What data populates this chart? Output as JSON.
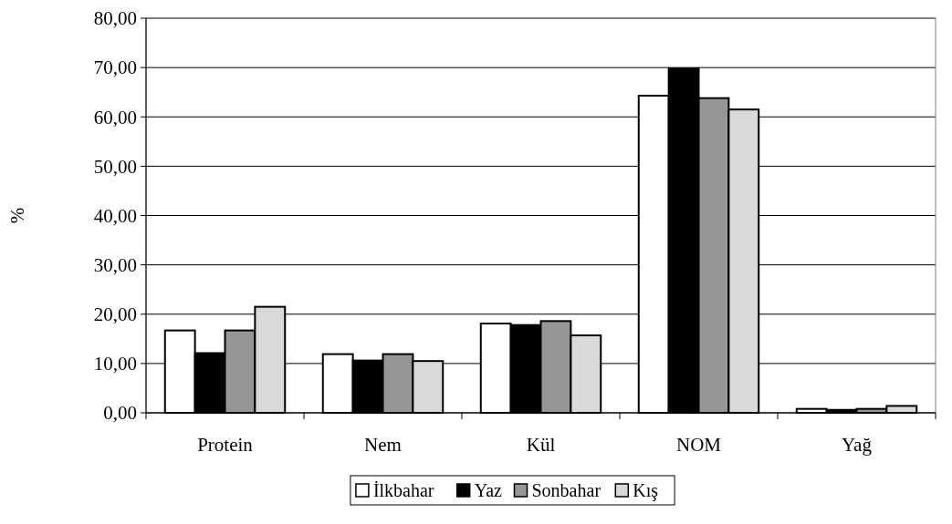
{
  "chart_data": {
    "type": "bar",
    "ylabel": "%",
    "categories": [
      "Protein",
      "Nem",
      "Kül",
      "NOM",
      "Yağ"
    ],
    "series": [
      {
        "name": "İlkbahar",
        "color": "#ffffff",
        "values": [
          16.7,
          11.9,
          18.1,
          64.3,
          0.8
        ]
      },
      {
        "name": "Yaz",
        "color": "#000000",
        "values": [
          12.1,
          10.6,
          17.8,
          69.8,
          0.6
        ]
      },
      {
        "name": "Sonbahar",
        "color": "#969696",
        "values": [
          16.7,
          11.9,
          18.6,
          63.8,
          0.8
        ]
      },
      {
        "name": "Kış",
        "color": "#d9d9d9",
        "values": [
          21.5,
          10.5,
          15.7,
          61.5,
          1.4
        ]
      }
    ],
    "ylim": [
      0,
      80
    ],
    "yticks": [
      {
        "value": 0,
        "label": "0,00"
      },
      {
        "value": 10,
        "label": "10,00"
      },
      {
        "value": 20,
        "label": "20,00"
      },
      {
        "value": 30,
        "label": "30,00"
      },
      {
        "value": 40,
        "label": "40,00"
      },
      {
        "value": 50,
        "label": "50,00"
      },
      {
        "value": 60,
        "label": "60,00"
      },
      {
        "value": 70,
        "label": "70,00"
      },
      {
        "value": 80,
        "label": "80,00"
      }
    ],
    "grid": "y",
    "legend": "bottom"
  }
}
